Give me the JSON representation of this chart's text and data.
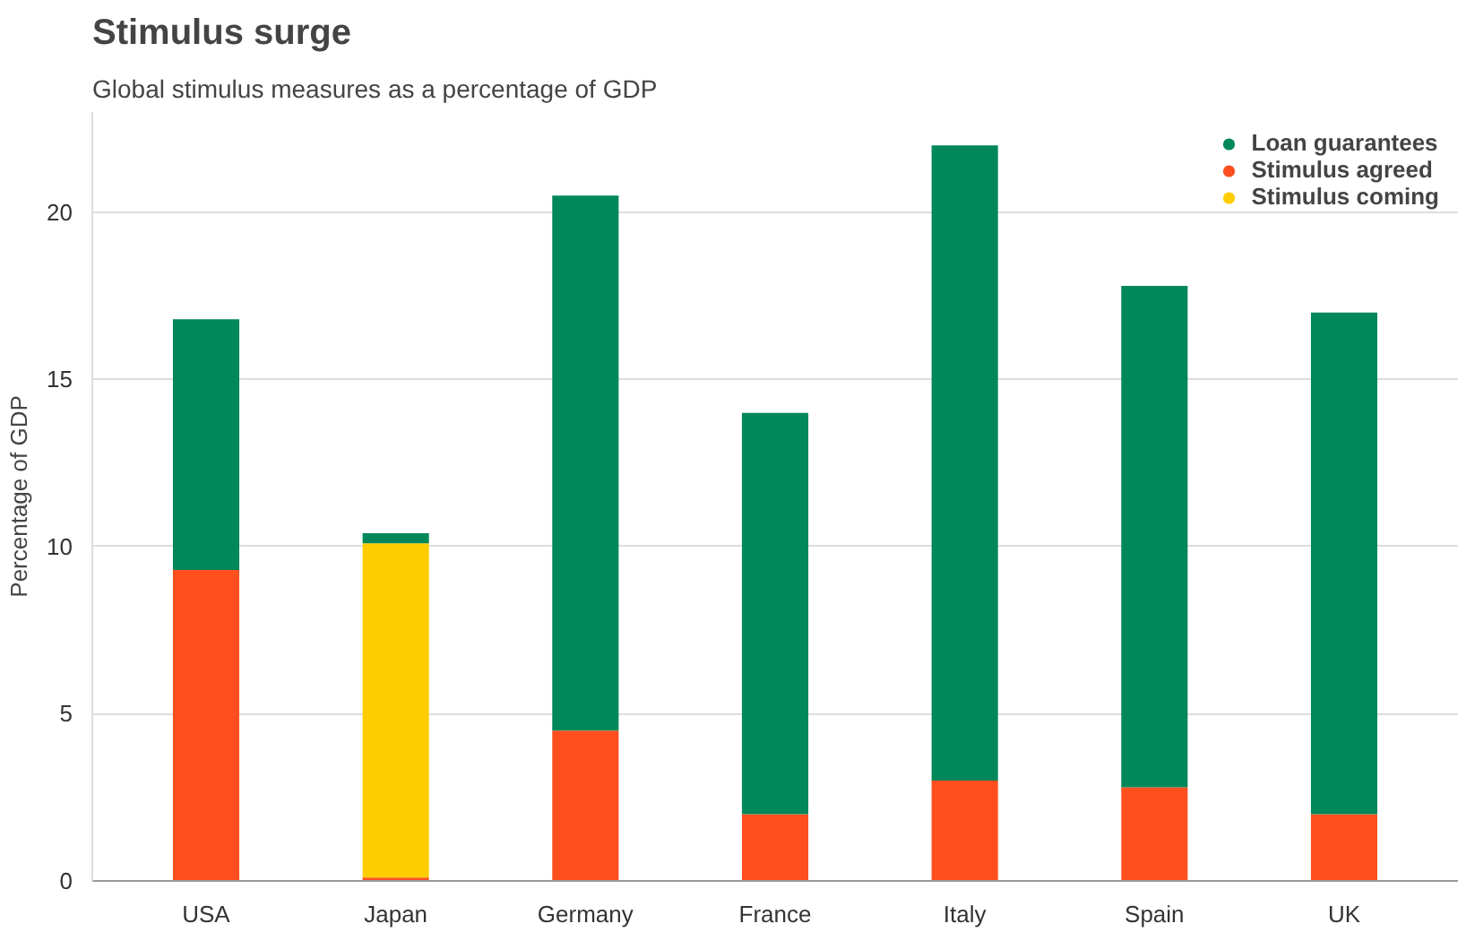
{
  "chart_data": {
    "type": "bar",
    "title": "Stimulus surge",
    "subtitle": "Global stimulus measures as a percentage of GDP",
    "ylabel": "Percentage of GDP",
    "categories": [
      "USA",
      "Japan",
      "Germany",
      "France",
      "Italy",
      "Spain",
      "UK"
    ],
    "stacked": true,
    "series": [
      {
        "name": "Stimulus agreed",
        "color": "#ff4f1f",
        "values": [
          9.3,
          0.1,
          4.5,
          2.0,
          3.0,
          2.8,
          2.0
        ]
      },
      {
        "name": "Stimulus coming",
        "color": "#ffcc00",
        "values": [
          0,
          10.0,
          0,
          0,
          0,
          0,
          0
        ]
      },
      {
        "name": "Loan guarantees",
        "color": "#00875a",
        "values": [
          7.5,
          0.3,
          16.0,
          12.0,
          19.0,
          15.0,
          15.0
        ]
      }
    ],
    "ylim": [
      0,
      23
    ],
    "yticks": [
      0,
      5,
      10,
      15,
      20
    ],
    "grid": "y",
    "legend": "top right",
    "marker": "circle"
  }
}
